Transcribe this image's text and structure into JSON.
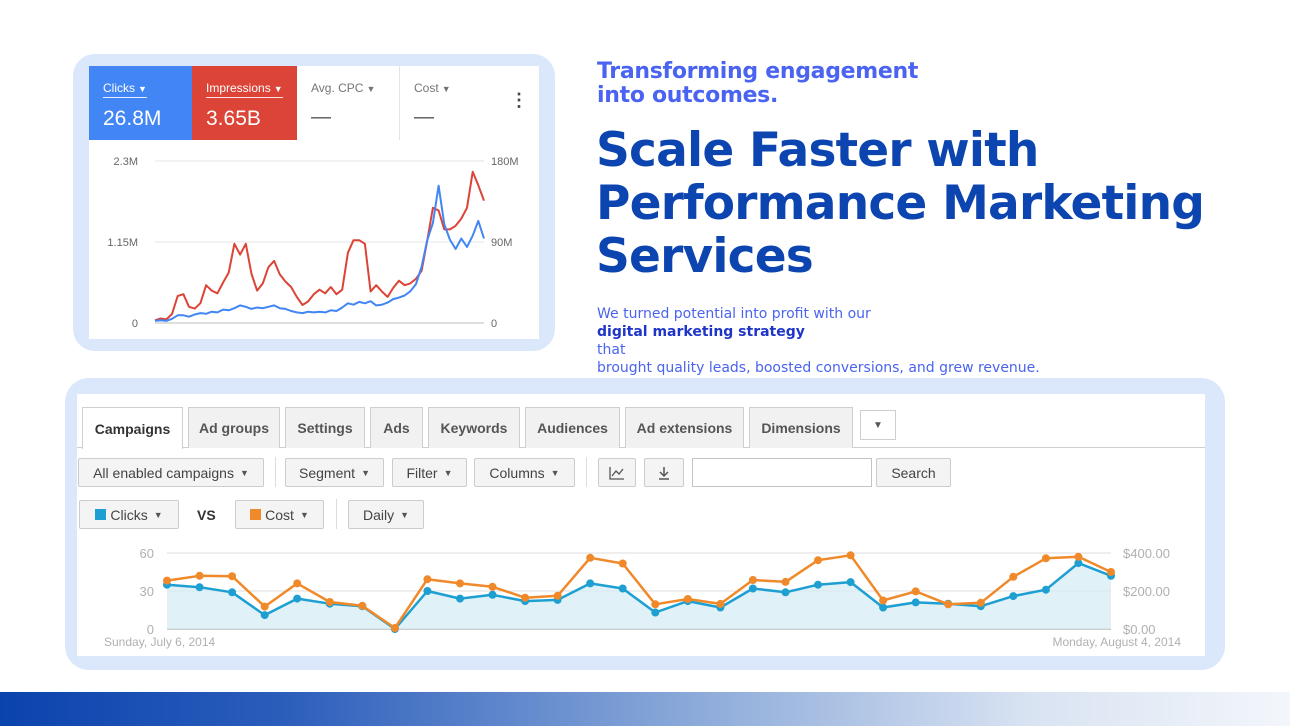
{
  "colors": {
    "accent_blue": "#4285f4",
    "accent_red": "#db4437",
    "headline_blue": "#0c44b0",
    "kicker_blue": "#4a63f0",
    "series_clicks": "#1e9fd2",
    "series_cost": "#f0892a"
  },
  "headline": {
    "kicker_line1": "Transforming engagement",
    "kicker_line2": "into outcomes.",
    "title_line1": "Scale Faster with",
    "title_line2": "Performance Marketing",
    "title_line3": "Services",
    "desc_line1_pre": "We turned potential into profit with our ",
    "desc_line1_bold": "digital marketing strategy",
    "desc_line1_post": " that",
    "desc_line2": "brought quality leads, boosted conversions, and grew revenue."
  },
  "scorecard": {
    "metrics": [
      {
        "label": "Clicks",
        "value": "26.8M"
      },
      {
        "label": "Impressions",
        "value": "3.65B"
      },
      {
        "label": "Avg. CPC",
        "value": "—"
      },
      {
        "label": "Cost",
        "value": "—"
      }
    ],
    "menu_icon": "kebab-vertical-icon"
  },
  "chart_data": [
    {
      "type": "line",
      "title": "",
      "y_left_ticks": [
        "2.3M",
        "1.15M",
        "0"
      ],
      "y_right_ticks": [
        "180M",
        "90M",
        "0"
      ],
      "ylim_left": [
        0,
        2300000
      ],
      "ylim_right": [
        0,
        180000000
      ],
      "grid": true,
      "series": [
        {
          "name": "Clicks",
          "axis": "left",
          "color": "#4285f4",
          "values": [
            0.03,
            0.04,
            0.03,
            0.06,
            0.11,
            0.11,
            0.09,
            0.12,
            0.14,
            0.13,
            0.16,
            0.15,
            0.19,
            0.18,
            0.21,
            0.25,
            0.23,
            0.2,
            0.22,
            0.21,
            0.23,
            0.25,
            0.21,
            0.2,
            0.17,
            0.15,
            0.14,
            0.16,
            0.15,
            0.16,
            0.15,
            0.18,
            0.17,
            0.22,
            0.28,
            0.26,
            0.3,
            0.28,
            0.31,
            0.25,
            0.26,
            0.29,
            0.34,
            0.36,
            0.39,
            0.45,
            0.55,
            0.8,
            1.18,
            1.42,
            1.95,
            1.4,
            1.18,
            1.05,
            1.2,
            1.08,
            1.24,
            1.45,
            1.2
          ]
        },
        {
          "name": "Impressions",
          "axis": "right",
          "color": "#db4437",
          "values": [
            3,
            5,
            4,
            10,
            30,
            32,
            18,
            16,
            22,
            42,
            36,
            33,
            45,
            56,
            88,
            76,
            88,
            55,
            36,
            44,
            62,
            69,
            54,
            46,
            40,
            29,
            20,
            24,
            32,
            37,
            33,
            40,
            32,
            37,
            78,
            92,
            92,
            88,
            35,
            42,
            35,
            29,
            39,
            47,
            42,
            44,
            49,
            58,
            92,
            128,
            125,
            104,
            104,
            108,
            116,
            128,
            168,
            153,
            136
          ]
        }
      ]
    },
    {
      "type": "line",
      "title": "",
      "x_start_label": "Sunday, July 6, 2014",
      "x_end_label": "Monday, August 4, 2014",
      "y_left_ticks": [
        "60",
        "30",
        "0"
      ],
      "y_right_ticks": [
        "$400.00",
        "$200.00",
        "$0.00"
      ],
      "ylim_left": [
        0,
        60
      ],
      "ylim_right": [
        0,
        400
      ],
      "grid": true,
      "series": [
        {
          "name": "Clicks",
          "axis": "left",
          "color": "#1e9fd2",
          "values": [
            35,
            33,
            29,
            11,
            24,
            20,
            18,
            0,
            30,
            24,
            27,
            22,
            23,
            36,
            32,
            13,
            22,
            17,
            32,
            29,
            35,
            37,
            17,
            21,
            20,
            18,
            26,
            31,
            52,
            42
          ]
        },
        {
          "name": "Cost",
          "axis": "right",
          "color": "#f0892a",
          "values": [
            255,
            280,
            278,
            118,
            240,
            142,
            122,
            5,
            262,
            240,
            222,
            165,
            175,
            375,
            345,
            130,
            158,
            132,
            258,
            248,
            362,
            388,
            150,
            198,
            130,
            138,
            275,
            372,
            380,
            300
          ]
        }
      ]
    }
  ],
  "adwords": {
    "tabs": [
      "Campaigns",
      "Ad groups",
      "Settings",
      "Ads",
      "Keywords",
      "Audiences",
      "Ad extensions",
      "Dimensions"
    ],
    "more_tab_icon": "caret-down-icon",
    "toolbar": {
      "campaign_filter": "All enabled campaigns",
      "segment": "Segment",
      "filter": "Filter",
      "columns": "Columns",
      "chart_icon": "line-chart-icon",
      "download_icon": "download-icon",
      "search_value": "",
      "search_button": "Search"
    },
    "compare": {
      "metric1": "Clicks",
      "vs": "VS",
      "metric2": "Cost",
      "period": "Daily"
    }
  }
}
